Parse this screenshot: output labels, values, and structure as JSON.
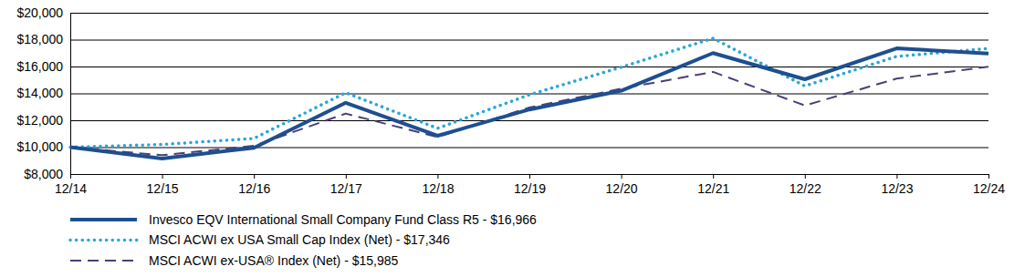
{
  "chart_data": {
    "type": "line",
    "categories": [
      "12/14",
      "12/15",
      "12/16",
      "12/17",
      "12/18",
      "12/19",
      "12/20",
      "12/21",
      "12/22",
      "12/23",
      "12/24"
    ],
    "series": [
      {
        "name": "Invesco EQV International Small Company Fund Class R5 - $16,966",
        "color": "#1d4f91",
        "line_style": "solid",
        "values": [
          10000,
          9150,
          9950,
          13300,
          10850,
          12800,
          14200,
          17000,
          15050,
          17350,
          16966
        ]
      },
      {
        "name": "MSCI ACWI ex USA Small Cap Index (Net) - $17,346",
        "color": "#2aa5d8",
        "line_style": "dotted",
        "values": [
          10000,
          10200,
          10650,
          14050,
          11400,
          13900,
          15950,
          18100,
          14550,
          16750,
          17346
        ]
      },
      {
        "name": "MSCI ACWI ex-USA® Index (Net) - $15,985",
        "color": "#4b3e7a",
        "line_style": "dashed",
        "values": [
          10000,
          9400,
          10100,
          12500,
          10750,
          12950,
          14350,
          15600,
          13100,
          15100,
          15985
        ]
      }
    ],
    "ylim": [
      8000,
      20000
    ],
    "yticks": [
      {
        "value": 8000,
        "label": "$8,000"
      },
      {
        "value": 10000,
        "label": "$10,000"
      },
      {
        "value": 12000,
        "label": "$12,000"
      },
      {
        "value": 14000,
        "label": "$14,000"
      },
      {
        "value": 16000,
        "label": "$16,000"
      },
      {
        "value": 18000,
        "label": "$18,000"
      },
      {
        "value": 20000,
        "label": "$20,000"
      }
    ],
    "grid": true,
    "legend": "bottom"
  }
}
